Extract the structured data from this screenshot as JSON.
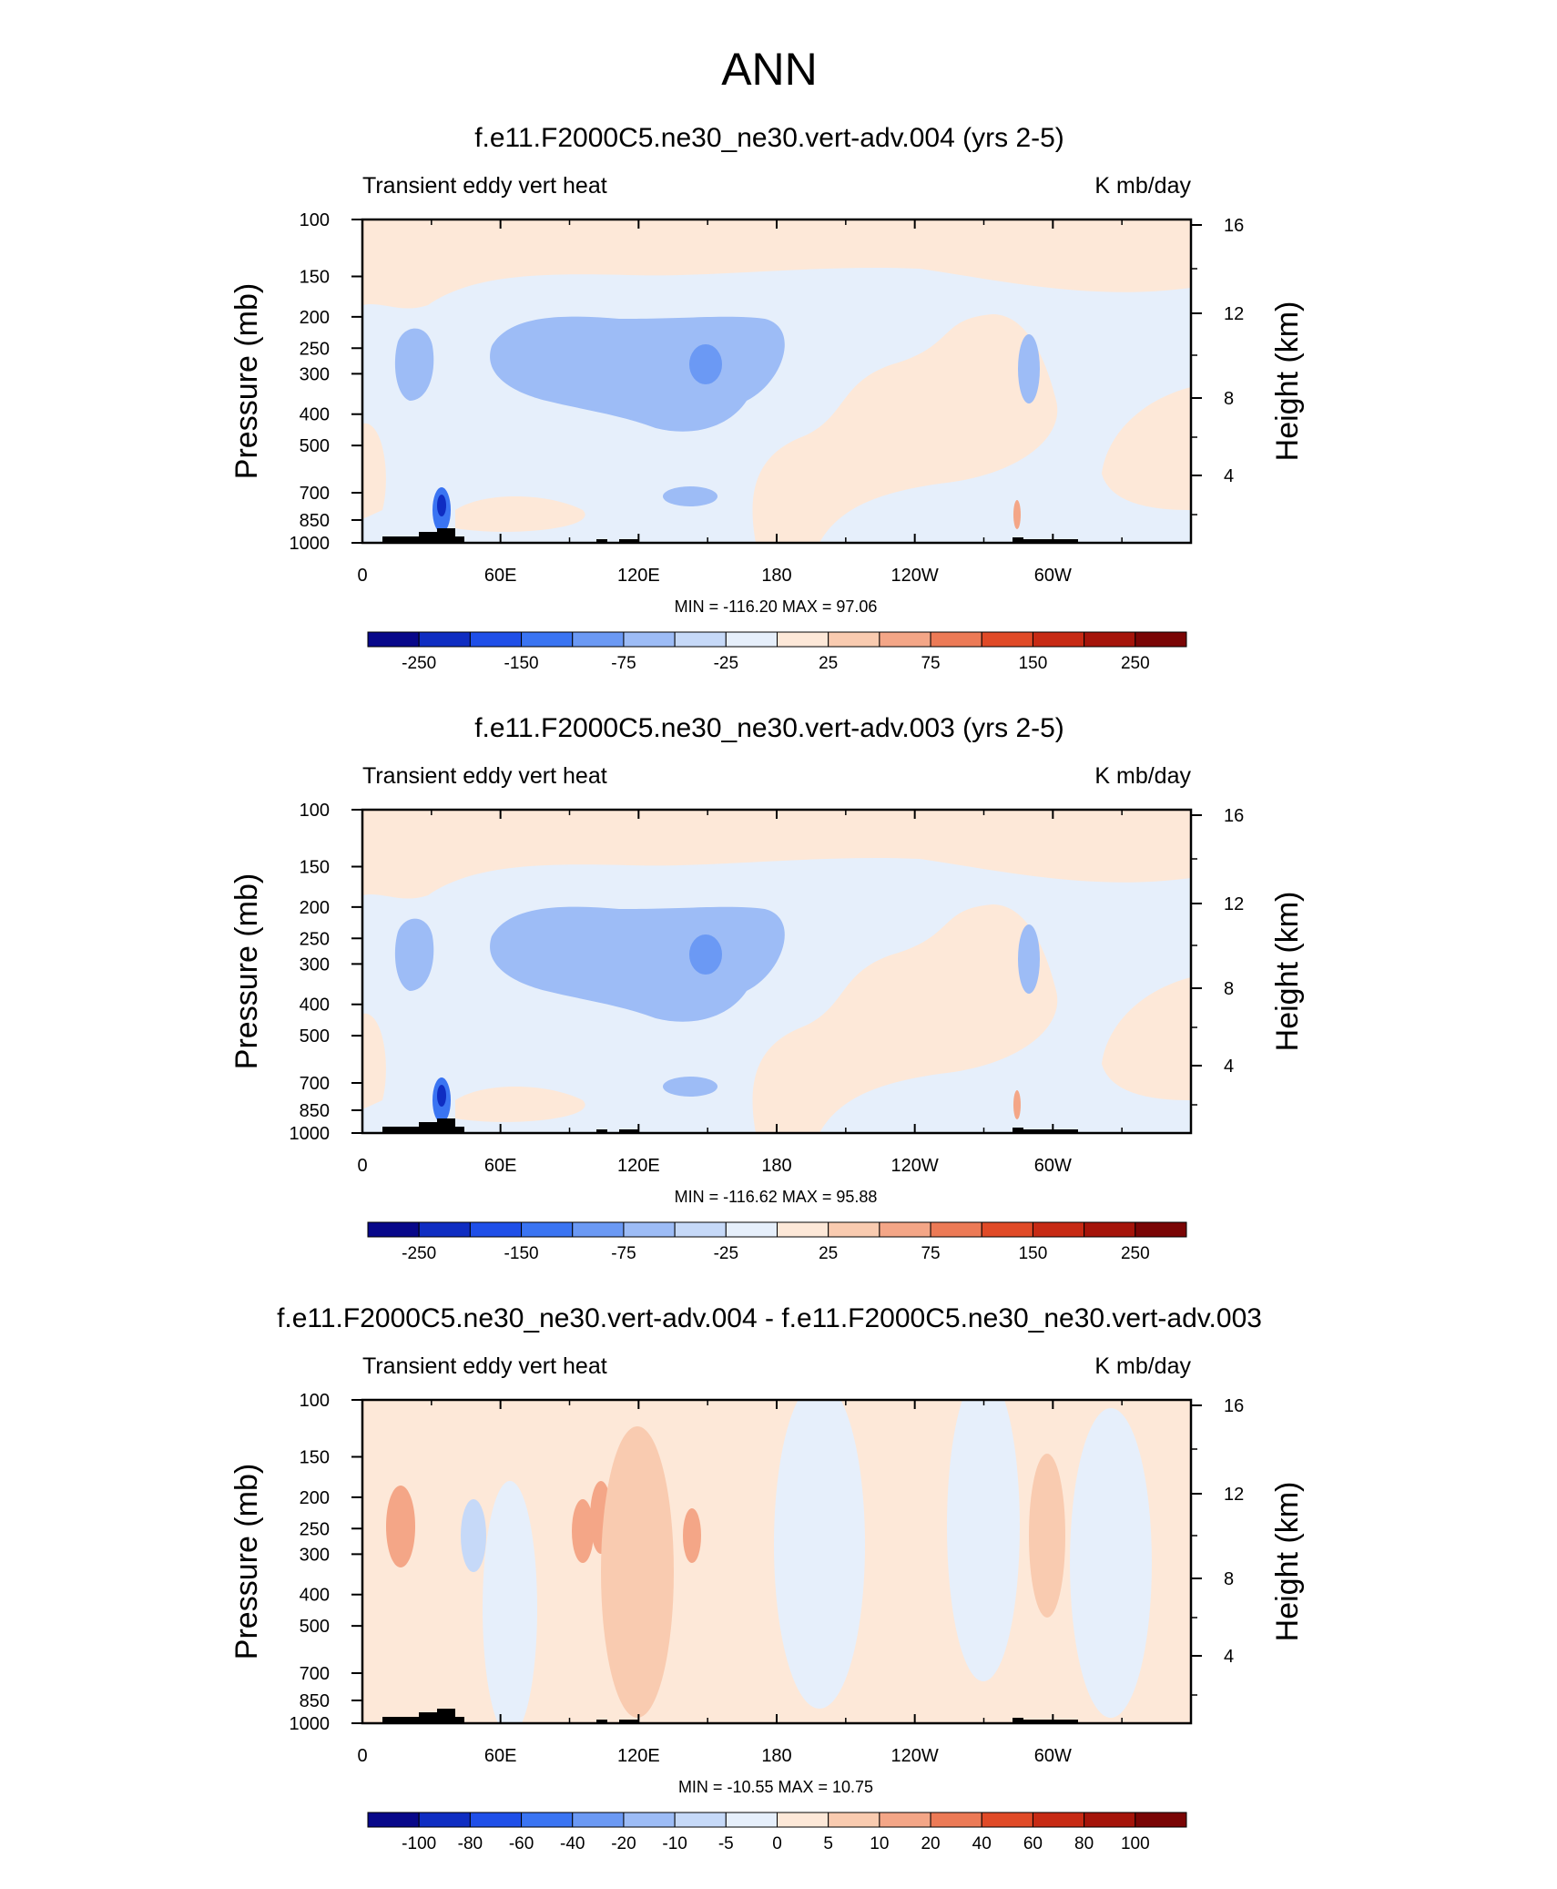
{
  "figure": {
    "title": "ANN"
  },
  "chart_data": [
    {
      "type": "heatmap",
      "title": "f.e11.F2000C5.ne30_ne30.vert-adv.004 (yrs 2-5)",
      "left_string": "Transient eddy vert heat",
      "right_string": "K mb/day",
      "ylabel": "Pressure (mb)",
      "ylabel_right": "Height (km)",
      "x_ticks": [
        "0",
        "60E",
        "120E",
        "180",
        "120W",
        "60W"
      ],
      "y_ticks": [
        "100",
        "150",
        "200",
        "250",
        "300",
        "400",
        "500",
        "700",
        "850",
        "1000"
      ],
      "y_ticks_right": [
        "16",
        "12",
        "8",
        "4"
      ],
      "minmax_label": "MIN = -116.20  MAX =  97.06",
      "min": -116.2,
      "max": 97.06,
      "colorbar": {
        "labels": [
          "-250",
          "-150",
          "-75",
          "-25",
          "25",
          "75",
          "150",
          "250"
        ],
        "colors": [
          "#08088a",
          "#0f2dc2",
          "#1f4fe8",
          "#3a74f2",
          "#6b99f4",
          "#9dbcf6",
          "#c6d9f8",
          "#e6effb",
          "#fde8d8",
          "#f9cbb0",
          "#f4a687",
          "#ec7a56",
          "#e04a27",
          "#c72a14",
          "#a5140a",
          "#7a0505"
        ]
      },
      "colormap": [
        "#08088a",
        "#0f2dc2",
        "#1f4fe8",
        "#3a74f2",
        "#6b99f4",
        "#9dbcf6",
        "#c6d9f8",
        "#e6effb",
        "#fde8d8",
        "#f9cbb0",
        "#f4a687",
        "#ec7a56",
        "#e04a27",
        "#c72a14",
        "#a5140a",
        "#7a0505"
      ]
    },
    {
      "type": "heatmap",
      "title": "f.e11.F2000C5.ne30_ne30.vert-adv.003 (yrs 2-5)",
      "left_string": "Transient eddy vert heat",
      "right_string": "K mb/day",
      "ylabel": "Pressure (mb)",
      "ylabel_right": "Height (km)",
      "x_ticks": [
        "0",
        "60E",
        "120E",
        "180",
        "120W",
        "60W"
      ],
      "y_ticks": [
        "100",
        "150",
        "200",
        "250",
        "300",
        "400",
        "500",
        "700",
        "850",
        "1000"
      ],
      "y_ticks_right": [
        "16",
        "12",
        "8",
        "4"
      ],
      "minmax_label": "MIN = -116.62  MAX =  95.88",
      "min": -116.62,
      "max": 95.88,
      "colorbar": {
        "labels": [
          "-250",
          "-150",
          "-75",
          "-25",
          "25",
          "75",
          "150",
          "250"
        ],
        "colors": [
          "#08088a",
          "#0f2dc2",
          "#1f4fe8",
          "#3a74f2",
          "#6b99f4",
          "#9dbcf6",
          "#c6d9f8",
          "#e6effb",
          "#fde8d8",
          "#f9cbb0",
          "#f4a687",
          "#ec7a56",
          "#e04a27",
          "#c72a14",
          "#a5140a",
          "#7a0505"
        ]
      },
      "colormap": [
        "#08088a",
        "#0f2dc2",
        "#1f4fe8",
        "#3a74f2",
        "#6b99f4",
        "#9dbcf6",
        "#c6d9f8",
        "#e6effb",
        "#fde8d8",
        "#f9cbb0",
        "#f4a687",
        "#ec7a56",
        "#e04a27",
        "#c72a14",
        "#a5140a",
        "#7a0505"
      ]
    },
    {
      "type": "heatmap",
      "title": "f.e11.F2000C5.ne30_ne30.vert-adv.004 - f.e11.F2000C5.ne30_ne30.vert-adv.003",
      "left_string": "Transient eddy vert heat",
      "right_string": "K mb/day",
      "ylabel": "Pressure (mb)",
      "ylabel_right": "Height (km)",
      "x_ticks": [
        "0",
        "60E",
        "120E",
        "180",
        "120W",
        "60W"
      ],
      "y_ticks": [
        "100",
        "150",
        "200",
        "250",
        "300",
        "400",
        "500",
        "700",
        "850",
        "1000"
      ],
      "y_ticks_right": [
        "16",
        "12",
        "8",
        "4"
      ],
      "minmax_label": "MIN = -10.55  MAX =  10.75",
      "min": -10.55,
      "max": 10.75,
      "colorbar": {
        "labels": [
          "-100",
          "-80",
          "-60",
          "-40",
          "-20",
          "-10",
          "-5",
          "0",
          "5",
          "10",
          "20",
          "40",
          "60",
          "80",
          "100"
        ],
        "colors": [
          "#08088a",
          "#0f2dc2",
          "#1f4fe8",
          "#3a74f2",
          "#6b99f4",
          "#9dbcf6",
          "#c6d9f8",
          "#e6effb",
          "#fde8d8",
          "#f9cbb0",
          "#f4a687",
          "#ec7a56",
          "#e04a27",
          "#c72a14",
          "#a5140a",
          "#7a0505"
        ]
      },
      "colormap": [
        "#08088a",
        "#0f2dc2",
        "#1f4fe8",
        "#3a74f2",
        "#6b99f4",
        "#9dbcf6",
        "#c6d9f8",
        "#e6effb",
        "#fde8d8",
        "#f9cbb0",
        "#f4a687",
        "#ec7a56",
        "#e04a27",
        "#c72a14",
        "#a5140a",
        "#7a0505"
      ]
    }
  ]
}
